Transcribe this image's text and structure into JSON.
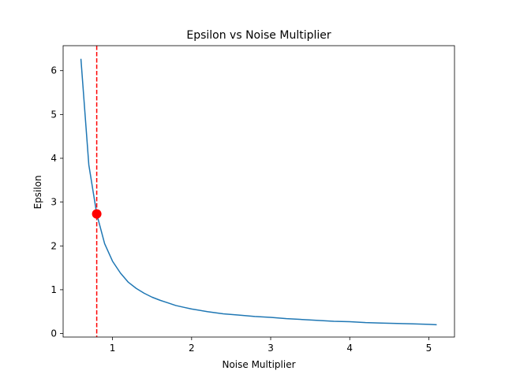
{
  "chart_data": {
    "type": "line",
    "title": "Epsilon vs Noise Multiplier",
    "xlabel": "Noise Multiplier",
    "ylabel": "Epsilon",
    "xlim": [
      0.375,
      5.325
    ],
    "ylim": [
      -0.08,
      6.57
    ],
    "xticks": [
      1,
      2,
      3,
      4,
      5
    ],
    "yticks": [
      0,
      1,
      2,
      3,
      4,
      5,
      6
    ],
    "grid": false,
    "series": [
      {
        "color": "#1f77b4",
        "x": [
          0.6,
          0.7,
          0.8,
          0.9,
          1.0,
          1.1,
          1.2,
          1.3,
          1.4,
          1.5,
          1.6,
          1.7,
          1.8,
          1.9,
          2.0,
          2.2,
          2.4,
          2.6,
          2.8,
          3.0,
          3.2,
          3.4,
          3.6,
          3.8,
          4.0,
          4.2,
          4.4,
          4.6,
          4.8,
          5.0,
          5.1
        ],
        "y": [
          6.27,
          3.85,
          2.73,
          2.05,
          1.65,
          1.38,
          1.17,
          1.03,
          0.92,
          0.83,
          0.76,
          0.7,
          0.64,
          0.6,
          0.56,
          0.5,
          0.45,
          0.42,
          0.39,
          0.37,
          0.34,
          0.32,
          0.3,
          0.28,
          0.27,
          0.25,
          0.24,
          0.23,
          0.22,
          0.21,
          0.2
        ]
      }
    ],
    "vline": {
      "x": 0.8,
      "color": "#ff0000",
      "style": "dashed"
    },
    "marker": {
      "x": 0.8,
      "y": 2.73,
      "color": "#ff0000"
    }
  }
}
